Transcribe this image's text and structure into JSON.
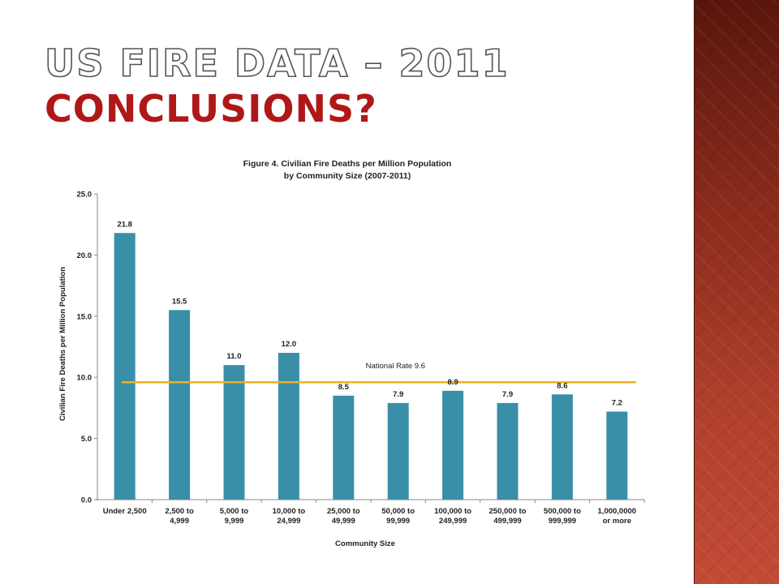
{
  "slide": {
    "title_line1": "US FIRE DATA – 2011",
    "title_line2": "CONCLUSIONS?",
    "accent_color": "#b01818",
    "band_color": "#8a2b1c"
  },
  "chart_data": {
    "type": "bar",
    "title": "Figure 4.  Civilian Fire Deaths per Million Population",
    "subtitle": "by Community Size (2007-2011)",
    "xlabel": "Community Size",
    "ylabel": "Civilian Fire Deaths per Million Population",
    "categories": [
      [
        "Under 2,500",
        ""
      ],
      [
        "2,500 to",
        "4,999"
      ],
      [
        "5,000 to",
        "9,999"
      ],
      [
        "10,000 to",
        "24,999"
      ],
      [
        "25,000 to",
        "49,999"
      ],
      [
        "50,000 to",
        "99,999"
      ],
      [
        "100,000 to",
        "249,999"
      ],
      [
        "250,000 to",
        "499,999"
      ],
      [
        "500,000 to",
        "999,999"
      ],
      [
        "1,000,0000",
        "or more"
      ]
    ],
    "values": [
      21.8,
      15.5,
      11.0,
      12.0,
      8.5,
      7.9,
      8.9,
      7.9,
      8.6,
      7.2
    ],
    "value_labels": [
      "21.8",
      "15.5",
      "11.0",
      "12.0",
      "8.5",
      "7.9",
      "8.9",
      "7.9",
      "8.6",
      "7.2"
    ],
    "ylim": [
      0,
      25
    ],
    "yticks": [
      "0.0",
      "5.0",
      "10.0",
      "15.0",
      "20.0",
      "25.0"
    ],
    "reference_line": {
      "label": "National Rate 9.6",
      "value": 9.6,
      "color": "#f0b020"
    },
    "bar_color": "#3a8fa8",
    "grid": false
  }
}
